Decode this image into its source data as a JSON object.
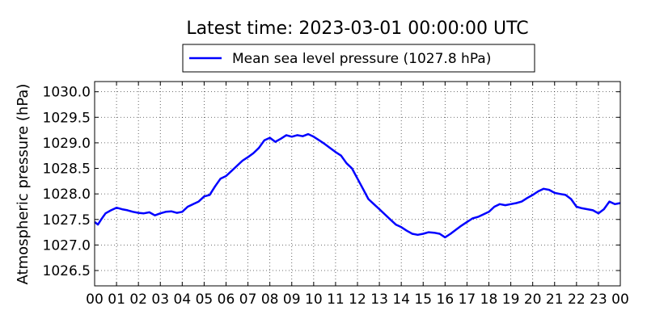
{
  "chart_data": {
    "type": "line",
    "title": "Latest time: 2023-03-01 00:00:00 UTC",
    "ylabel": "Atmospheric pressure (hPa)",
    "xlabel": "",
    "xlim": [
      0,
      24
    ],
    "ylim": [
      1026.2,
      1030.2
    ],
    "x_ticks": [
      "00",
      "01",
      "02",
      "03",
      "04",
      "05",
      "06",
      "07",
      "08",
      "09",
      "10",
      "11",
      "12",
      "13",
      "14",
      "15",
      "16",
      "17",
      "18",
      "19",
      "20",
      "21",
      "22",
      "23",
      "00"
    ],
    "y_ticks": [
      {
        "value": 1026.5,
        "label": "1026.5"
      },
      {
        "value": 1027.0,
        "label": "1027.0"
      },
      {
        "value": 1027.5,
        "label": "1027.5"
      },
      {
        "value": 1028.0,
        "label": "1028.0"
      },
      {
        "value": 1028.5,
        "label": "1028.5"
      },
      {
        "value": 1029.0,
        "label": "1029.0"
      },
      {
        "value": 1029.5,
        "label": "1029.5"
      },
      {
        "value": 1030.0,
        "label": "1030.0"
      }
    ],
    "grid": true,
    "legend_position": "top-center",
    "series": [
      {
        "name": "Mean sea level pressure (1027.8 hPa)",
        "color": "#0000ff",
        "x": [
          0.0,
          0.15,
          0.3,
          0.5,
          0.75,
          1.0,
          1.25,
          1.5,
          1.75,
          2.0,
          2.25,
          2.5,
          2.75,
          3.0,
          3.25,
          3.5,
          3.75,
          4.0,
          4.25,
          4.5,
          4.75,
          5.0,
          5.25,
          5.5,
          5.75,
          6.0,
          6.25,
          6.5,
          6.75,
          7.0,
          7.25,
          7.5,
          7.75,
          8.0,
          8.25,
          8.5,
          8.75,
          9.0,
          9.25,
          9.5,
          9.75,
          10.0,
          10.25,
          10.5,
          10.75,
          11.0,
          11.25,
          11.5,
          11.75,
          12.0,
          12.25,
          12.5,
          12.75,
          13.0,
          13.25,
          13.5,
          13.75,
          14.0,
          14.25,
          14.5,
          14.75,
          15.0,
          15.25,
          15.5,
          15.75,
          16.0,
          16.25,
          16.5,
          16.75,
          17.0,
          17.25,
          17.5,
          17.75,
          18.0,
          18.25,
          18.5,
          18.75,
          19.0,
          19.25,
          19.5,
          19.75,
          20.0,
          20.25,
          20.5,
          20.75,
          21.0,
          21.25,
          21.5,
          21.75,
          22.0,
          22.25,
          22.5,
          22.75,
          23.0,
          23.25,
          23.5,
          23.75,
          24.0
        ],
        "y": [
          1027.45,
          1027.4,
          1027.5,
          1027.62,
          1027.68,
          1027.73,
          1027.7,
          1027.68,
          1027.65,
          1027.63,
          1027.62,
          1027.64,
          1027.58,
          1027.62,
          1027.65,
          1027.66,
          1027.63,
          1027.65,
          1027.75,
          1027.8,
          1027.85,
          1027.95,
          1027.98,
          1028.15,
          1028.3,
          1028.35,
          1028.45,
          1028.55,
          1028.65,
          1028.72,
          1028.8,
          1028.9,
          1029.05,
          1029.1,
          1029.02,
          1029.08,
          1029.15,
          1029.12,
          1029.15,
          1029.13,
          1029.17,
          1029.12,
          1029.05,
          1028.98,
          1028.9,
          1028.82,
          1028.75,
          1028.6,
          1028.5,
          1028.3,
          1028.1,
          1027.9,
          1027.8,
          1027.7,
          1027.6,
          1027.5,
          1027.4,
          1027.35,
          1027.28,
          1027.22,
          1027.2,
          1027.22,
          1027.25,
          1027.24,
          1027.22,
          1027.15,
          1027.22,
          1027.3,
          1027.38,
          1027.45,
          1027.52,
          1027.55,
          1027.6,
          1027.65,
          1027.75,
          1027.8,
          1027.78,
          1027.8,
          1027.82,
          1027.85,
          1027.92,
          1027.98,
          1028.05,
          1028.1,
          1028.08,
          1028.02,
          1028.0,
          1027.98,
          1027.9,
          1027.75,
          1027.72,
          1027.7,
          1027.68,
          1027.62,
          1027.7,
          1027.85,
          1027.8,
          1027.82
        ]
      }
    ]
  }
}
